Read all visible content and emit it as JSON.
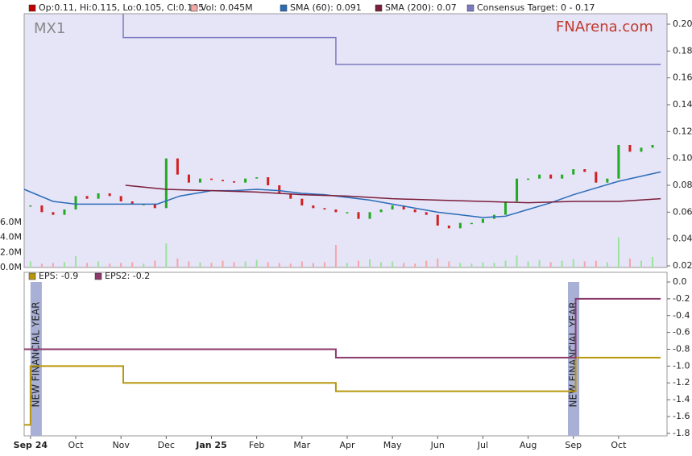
{
  "chart_data": [
    {
      "type": "stock",
      "title": "MX1",
      "watermark": "FNArena.com",
      "xlim": [
        -0.14,
        14.07
      ],
      "xticks": [
        {
          "value": 0,
          "label": "Sep 24"
        },
        {
          "value": 1,
          "label": "Oct"
        },
        {
          "value": 2,
          "label": "Nov"
        },
        {
          "value": 3,
          "label": "Dec"
        },
        {
          "value": 4,
          "label": "Jan 25"
        },
        {
          "value": 5,
          "label": "Feb"
        },
        {
          "value": 6,
          "label": "Mar"
        },
        {
          "value": 7,
          "label": "Apr"
        },
        {
          "value": 8,
          "label": "May"
        },
        {
          "value": 9,
          "label": "Jun"
        },
        {
          "value": 10,
          "label": "Jul"
        },
        {
          "value": 11,
          "label": "Aug"
        },
        {
          "value": 12,
          "label": "Sep"
        },
        {
          "value": 13,
          "label": "Oct"
        }
      ],
      "ylim": [
        0.0188,
        0.2078
      ],
      "yticks": [
        0.02,
        0.04,
        0.06,
        0.08,
        {
          "value": 0.1,
          "label": "0.10"
        },
        0.12,
        0.14,
        0.16,
        0.18,
        {
          "value": 0.2,
          "label": "0.20"
        }
      ],
      "y2lim": [
        0,
        33.75
      ],
      "y2ticks": [
        {
          "value": 0,
          "label": "0.0M"
        },
        {
          "value": 2,
          "label": "2.0M"
        },
        {
          "value": 4,
          "label": "4.0M"
        },
        {
          "value": 6,
          "label": "6.0M"
        }
      ],
      "up_color": "#22aa22",
      "down_color": "#d02020",
      "x": [
        0,
        0.25,
        0.5,
        0.75,
        1,
        1.25,
        1.5,
        1.75,
        2,
        2.25,
        2.5,
        2.75,
        3,
        3.25,
        3.5,
        3.75,
        4,
        4.25,
        4.5,
        4.75,
        5,
        5.25,
        5.5,
        5.75,
        6,
        6.25,
        6.5,
        6.75,
        7,
        7.25,
        7.5,
        7.75,
        8,
        8.25,
        8.5,
        8.75,
        9,
        9.25,
        9.5,
        9.75,
        10,
        10.25,
        10.5,
        10.75,
        11,
        11.25,
        11.5,
        11.75,
        12,
        12.25,
        12.5,
        12.75,
        13,
        13.25,
        13.5,
        13.75
      ],
      "series": [
        {
          "name": "Op:0.11, Hi:0.115, Lo:0.105, Cl:0.105",
          "color": "#c00000",
          "values": [
            0.065,
            0.06,
            0.058,
            0.062,
            0.072,
            0.07,
            0.074,
            0.072,
            0.068,
            0.066,
            0.066,
            0.063,
            0.1,
            0.088,
            0.082,
            0.085,
            0.084,
            0.083,
            0.082,
            0.085,
            0.086,
            0.08,
            0.074,
            0.07,
            0.065,
            0.063,
            0.062,
            0.06,
            0.06,
            0.055,
            0.06,
            0.062,
            0.065,
            0.062,
            0.06,
            0.058,
            0.05,
            0.048,
            0.052,
            0.052,
            0.055,
            0.058,
            0.068,
            0.085,
            0.085,
            0.088,
            0.085,
            0.088,
            0.092,
            0.09,
            0.082,
            0.085,
            0.11,
            0.105,
            0.108,
            0.11
          ]
        },
        {
          "name": "Vol: 0.045M",
          "color": "#f4a6a6",
          "axis": "y2",
          "values": [
            0.8,
            0.5,
            0.6,
            0.7,
            1.5,
            0.6,
            0.8,
            0.5,
            0.6,
            0.7,
            0.5,
            0.9,
            3.2,
            1.2,
            0.8,
            0.7,
            0.6,
            0.9,
            0.7,
            0.8,
            1.0,
            0.7,
            0.6,
            0.5,
            0.8,
            0.6,
            0.7,
            3.0,
            0.6,
            0.9,
            1.1,
            0.7,
            0.8,
            0.6,
            0.5,
            0.9,
            1.2,
            0.8,
            0.6,
            0.5,
            0.7,
            0.6,
            0.9,
            1.6,
            0.8,
            1.0,
            0.7,
            0.9,
            1.1,
            0.8,
            0.9,
            0.7,
            4.0,
            1.2,
            0.9,
            1.4
          ]
        },
        {
          "name": "SMA (60): 0.091",
          "color": "#2a6cb8",
          "x": [
            -0.14,
            0.5,
            1,
            2,
            2.8,
            3.3,
            4,
            4.5,
            5,
            5.5,
            6,
            6.5,
            7,
            7.5,
            8,
            8.5,
            9,
            9.5,
            10,
            10.5,
            11,
            11.5,
            12,
            12.5,
            13,
            13.93
          ],
          "values": [
            0.077,
            0.068,
            0.066,
            0.066,
            0.066,
            0.072,
            0.076,
            0.076,
            0.077,
            0.076,
            0.074,
            0.073,
            0.071,
            0.069,
            0.066,
            0.063,
            0.06,
            0.058,
            0.056,
            0.057,
            0.062,
            0.067,
            0.073,
            0.078,
            0.083,
            0.09
          ]
        },
        {
          "name": "SMA (200): 0.07",
          "color": "#7b1f3a",
          "x": [
            2.1,
            3,
            4,
            5,
            6,
            7,
            8,
            9,
            10,
            11,
            12,
            13,
            13.93
          ],
          "values": [
            0.08,
            0.077,
            0.076,
            0.075,
            0.073,
            0.072,
            0.07,
            0.069,
            0.068,
            0.067,
            0.068,
            0.068,
            0.07
          ]
        },
        {
          "name": "Consensus Target: 0 - 0.17",
          "color": "#7a7ac0",
          "step": true,
          "x": [
            -0.14,
            2.05,
            6.75,
            13.93
          ],
          "values": [
            0.21,
            0.19,
            0.17,
            0.17
          ]
        }
      ]
    },
    {
      "type": "step",
      "ylim": [
        -1.83,
        0.115
      ],
      "yticks": [
        {
          "value": 0,
          "label": "0.0"
        },
        -0.2,
        -0.4,
        -0.6,
        -0.8,
        {
          "value": -1,
          "label": "-1.0"
        },
        -1.2,
        -1.4,
        -1.6,
        -1.8
      ],
      "series": [
        {
          "name": "EPS: -0.9",
          "color": "#b8960c",
          "x": [
            -0.14,
            0,
            2.05,
            6.75,
            12.05,
            13.93
          ],
          "values": [
            -1.7,
            -1.0,
            -1.2,
            -1.3,
            -0.9,
            -0.9
          ]
        },
        {
          "name": "EPS2: -0.2",
          "color": "#8b3a6b",
          "x": [
            -0.14,
            6.75,
            12.05,
            13.93
          ],
          "values": [
            -0.8,
            -0.9,
            -0.2,
            -0.2
          ]
        }
      ],
      "annotations": [
        {
          "text": "NEW FINANCIAL YEAR",
          "x": [
            0,
            0.25
          ]
        },
        {
          "text": "NEW FINANCIAL YEAR",
          "x": [
            11.88,
            12.13
          ]
        }
      ]
    }
  ]
}
